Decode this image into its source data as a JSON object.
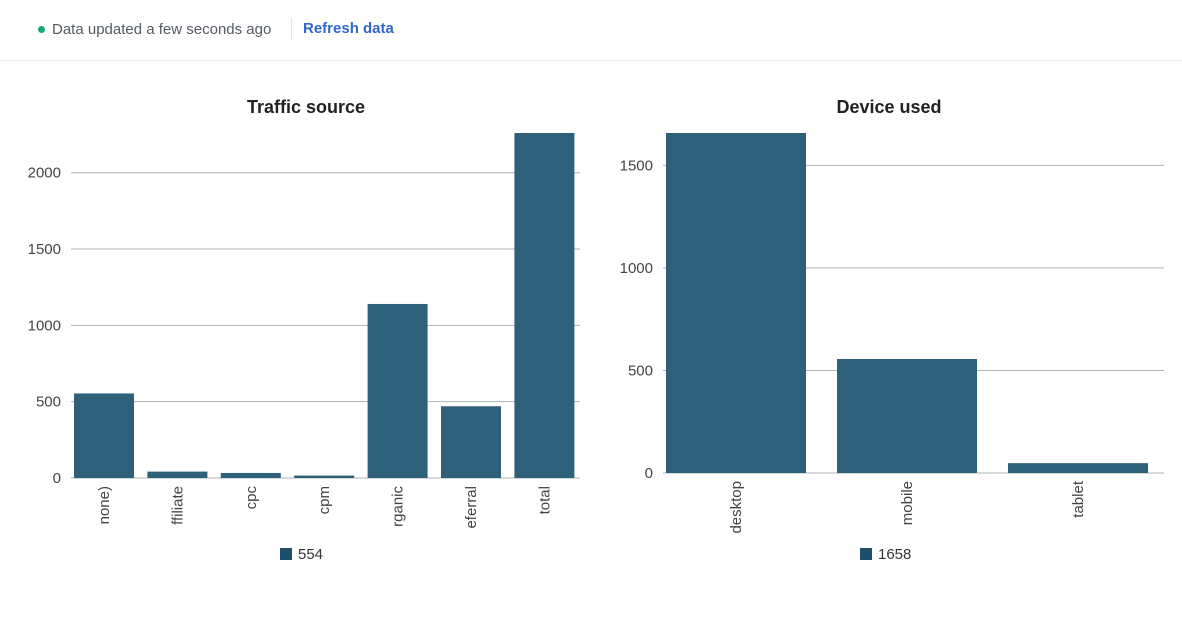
{
  "status": {
    "text": "Data updated a few seconds ago"
  },
  "actions": {
    "refresh_label": "Refresh data"
  },
  "colors": {
    "bar": "#2f6079",
    "legend": "#1d4e6b",
    "status_dot": "#19a974",
    "link": "#3366cc"
  },
  "chart_data": [
    {
      "type": "bar",
      "title": "Traffic source",
      "categories": [
        "none)",
        "ffiliate",
        "cpc",
        "cpm",
        "rganic",
        "eferral",
        "total"
      ],
      "values": [
        554,
        42,
        33,
        16,
        1140,
        470,
        2260
      ],
      "yticks": [
        0,
        500,
        1000,
        1500,
        2000
      ],
      "ylim": [
        0,
        2260
      ],
      "grid": true,
      "legend": {
        "label": "554",
        "placement": "bottom-center"
      }
    },
    {
      "type": "bar",
      "title": "Device used",
      "categories": [
        "desktop",
        "mobile",
        "tablet"
      ],
      "values": [
        1658,
        556,
        48
      ],
      "yticks": [
        0,
        500,
        1000,
        1500
      ],
      "ylim": [
        0,
        1658
      ],
      "grid": true,
      "legend": {
        "label": "1658",
        "placement": "bottom-center"
      }
    }
  ]
}
